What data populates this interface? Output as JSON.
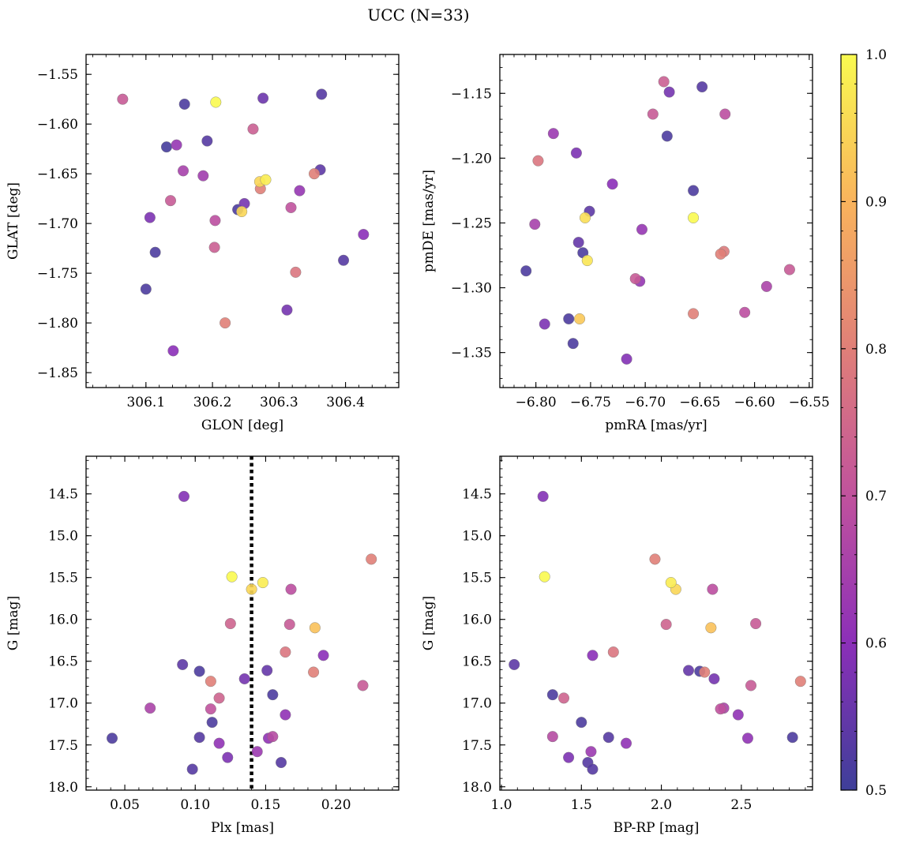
{
  "figure": {
    "title": "UCC (N=33)"
  },
  "colorbar": {
    "colormap": "plasma",
    "vmin": 0.5,
    "vmax": 1.0,
    "ticks": [
      0.5,
      0.6,
      0.7,
      0.8,
      0.9,
      1.0
    ],
    "tick_labels": [
      "0.5",
      "0.6",
      "0.7",
      "0.8",
      "0.9",
      "1.0"
    ]
  },
  "chart_data": [
    {
      "type": "scatter",
      "xlabel": "GLON [deg]",
      "ylabel": "GLAT [deg]",
      "xlim": [
        306.01,
        306.48
      ],
      "ylim": [
        -1.865,
        -1.53
      ],
      "xticks": [
        306.1,
        306.2,
        306.3,
        306.4
      ],
      "xtick_labels": [
        "306.1",
        "306.2",
        "306.3",
        "306.4"
      ],
      "yticks": [
        -1.55,
        -1.6,
        -1.65,
        -1.7,
        -1.75,
        -1.8,
        -1.85
      ],
      "ytick_labels": [
        "−1.55",
        "−1.60",
        "−1.65",
        "−1.70",
        "−1.75",
        "−1.80",
        "−1.85"
      ],
      "points": [
        {
          "x": 306.065,
          "y": -1.575,
          "c": 0.72
        },
        {
          "x": 306.158,
          "y": -1.58,
          "c": 0.52
        },
        {
          "x": 306.205,
          "y": -1.578,
          "c": 1.0
        },
        {
          "x": 306.276,
          "y": -1.574,
          "c": 0.56
        },
        {
          "x": 306.364,
          "y": -1.57,
          "c": 0.53
        },
        {
          "x": 306.131,
          "y": -1.623,
          "c": 0.51
        },
        {
          "x": 306.146,
          "y": -1.621,
          "c": 0.62
        },
        {
          "x": 306.192,
          "y": -1.617,
          "c": 0.53
        },
        {
          "x": 306.261,
          "y": -1.605,
          "c": 0.73
        },
        {
          "x": 306.156,
          "y": -1.647,
          "c": 0.65
        },
        {
          "x": 306.186,
          "y": -1.652,
          "c": 0.64
        },
        {
          "x": 306.271,
          "y": -1.658,
          "c": 0.95
        },
        {
          "x": 306.28,
          "y": -1.656,
          "c": 0.98
        },
        {
          "x": 306.353,
          "y": -1.65,
          "c": 0.8
        },
        {
          "x": 306.362,
          "y": -1.646,
          "c": 0.54
        },
        {
          "x": 306.137,
          "y": -1.677,
          "c": 0.72
        },
        {
          "x": 306.248,
          "y": -1.68,
          "c": 0.57
        },
        {
          "x": 306.272,
          "y": -1.665,
          "c": 0.8
        },
        {
          "x": 306.331,
          "y": -1.667,
          "c": 0.62
        },
        {
          "x": 306.238,
          "y": -1.686,
          "c": 0.52
        },
        {
          "x": 306.244,
          "y": -1.688,
          "c": 0.95
        },
        {
          "x": 306.318,
          "y": -1.684,
          "c": 0.7
        },
        {
          "x": 306.106,
          "y": -1.694,
          "c": 0.58
        },
        {
          "x": 306.204,
          "y": -1.697,
          "c": 0.69
        },
        {
          "x": 306.427,
          "y": -1.711,
          "c": 0.6
        },
        {
          "x": 306.114,
          "y": -1.729,
          "c": 0.52
        },
        {
          "x": 306.203,
          "y": -1.724,
          "c": 0.73
        },
        {
          "x": 306.397,
          "y": -1.737,
          "c": 0.53
        },
        {
          "x": 306.325,
          "y": -1.749,
          "c": 0.78
        },
        {
          "x": 306.1,
          "y": -1.766,
          "c": 0.52
        },
        {
          "x": 306.312,
          "y": -1.787,
          "c": 0.57
        },
        {
          "x": 306.219,
          "y": -1.8,
          "c": 0.8
        },
        {
          "x": 306.141,
          "y": -1.828,
          "c": 0.6
        }
      ]
    },
    {
      "type": "scatter",
      "xlabel": "pmRA [mas/yr]",
      "ylabel": "pmDE [mas/yr]",
      "xlim": [
        -6.833,
        -6.547
      ],
      "ylim": [
        -1.377,
        -1.12
      ],
      "xticks": [
        -6.8,
        -6.75,
        -6.7,
        -6.65,
        -6.6,
        -6.55
      ],
      "xtick_labels": [
        "−6.80",
        "−6.75",
        "−6.70",
        "−6.65",
        "−6.60",
        "−6.55"
      ],
      "yticks": [
        -1.15,
        -1.2,
        -1.25,
        -1.3,
        -1.35
      ],
      "ytick_labels": [
        "−1.15",
        "−1.20",
        "−1.25",
        "−1.30",
        "−1.35"
      ],
      "points": [
        {
          "x": -6.683,
          "y": -1.141,
          "c": 0.73
        },
        {
          "x": -6.648,
          "y": -1.145,
          "c": 0.53
        },
        {
          "x": -6.678,
          "y": -1.149,
          "c": 0.57
        },
        {
          "x": -6.693,
          "y": -1.166,
          "c": 0.72
        },
        {
          "x": -6.627,
          "y": -1.166,
          "c": 0.69
        },
        {
          "x": -6.784,
          "y": -1.181,
          "c": 0.63
        },
        {
          "x": -6.68,
          "y": -1.183,
          "c": 0.52
        },
        {
          "x": -6.763,
          "y": -1.196,
          "c": 0.58
        },
        {
          "x": -6.798,
          "y": -1.202,
          "c": 0.78
        },
        {
          "x": -6.73,
          "y": -1.22,
          "c": 0.6
        },
        {
          "x": -6.656,
          "y": -1.225,
          "c": 0.52
        },
        {
          "x": -6.751,
          "y": -1.241,
          "c": 0.54
        },
        {
          "x": -6.755,
          "y": -1.246,
          "c": 0.96
        },
        {
          "x": -6.656,
          "y": -1.246,
          "c": 1.0
        },
        {
          "x": -6.801,
          "y": -1.251,
          "c": 0.65
        },
        {
          "x": -6.703,
          "y": -1.255,
          "c": 0.62
        },
        {
          "x": -6.761,
          "y": -1.265,
          "c": 0.55
        },
        {
          "x": -6.628,
          "y": -1.272,
          "c": 0.79
        },
        {
          "x": -6.631,
          "y": -1.274,
          "c": 0.8
        },
        {
          "x": -6.757,
          "y": -1.273,
          "c": 0.52
        },
        {
          "x": -6.753,
          "y": -1.279,
          "c": 0.97
        },
        {
          "x": -6.568,
          "y": -1.286,
          "c": 0.72
        },
        {
          "x": -6.809,
          "y": -1.287,
          "c": 0.52
        },
        {
          "x": -6.709,
          "y": -1.293,
          "c": 0.72
        },
        {
          "x": -6.705,
          "y": -1.295,
          "c": 0.62
        },
        {
          "x": -6.589,
          "y": -1.299,
          "c": 0.66
        },
        {
          "x": -6.609,
          "y": -1.319,
          "c": 0.69
        },
        {
          "x": -6.656,
          "y": -1.32,
          "c": 0.8
        },
        {
          "x": -6.77,
          "y": -1.324,
          "c": 0.52
        },
        {
          "x": -6.76,
          "y": -1.324,
          "c": 0.93
        },
        {
          "x": -6.792,
          "y": -1.328,
          "c": 0.58
        },
        {
          "x": -6.766,
          "y": -1.343,
          "c": 0.52
        },
        {
          "x": -6.717,
          "y": -1.355,
          "c": 0.59
        }
      ]
    },
    {
      "type": "scatter",
      "xlabel": "Plx [mas]",
      "ylabel": "G [mag]",
      "xlim": [
        0.0225,
        0.2445
      ],
      "ylim": [
        18.04,
        14.05
      ],
      "inverted_y": true,
      "vline": {
        "x": 0.14,
        "style": "dotted"
      },
      "xticks": [
        0.05,
        0.1,
        0.15,
        0.2
      ],
      "xtick_labels": [
        "0.05",
        "0.10",
        "0.15",
        "0.20"
      ],
      "yticks": [
        14.5,
        15.0,
        15.5,
        16.0,
        16.5,
        17.0,
        17.5,
        18.0
      ],
      "ytick_labels": [
        "14.5",
        "15.0",
        "15.5",
        "16.0",
        "16.5",
        "17.0",
        "17.5",
        "18.0"
      ],
      "points": [
        {
          "x": 0.092,
          "y": 14.53,
          "c": 0.59
        },
        {
          "x": 0.225,
          "y": 15.28,
          "c": 0.8
        },
        {
          "x": 0.126,
          "y": 15.49,
          "c": 1.0
        },
        {
          "x": 0.148,
          "y": 15.56,
          "c": 0.98
        },
        {
          "x": 0.14,
          "y": 15.64,
          "c": 0.95
        },
        {
          "x": 0.168,
          "y": 15.64,
          "c": 0.69
        },
        {
          "x": 0.125,
          "y": 16.05,
          "c": 0.74
        },
        {
          "x": 0.167,
          "y": 16.06,
          "c": 0.72
        },
        {
          "x": 0.185,
          "y": 16.1,
          "c": 0.92
        },
        {
          "x": 0.164,
          "y": 16.39,
          "c": 0.78
        },
        {
          "x": 0.191,
          "y": 16.43,
          "c": 0.6
        },
        {
          "x": 0.091,
          "y": 16.54,
          "c": 0.54
        },
        {
          "x": 0.151,
          "y": 16.61,
          "c": 0.55
        },
        {
          "x": 0.103,
          "y": 16.62,
          "c": 0.52
        },
        {
          "x": 0.184,
          "y": 16.63,
          "c": 0.8
        },
        {
          "x": 0.135,
          "y": 16.71,
          "c": 0.57
        },
        {
          "x": 0.111,
          "y": 16.74,
          "c": 0.8
        },
        {
          "x": 0.219,
          "y": 16.79,
          "c": 0.72
        },
        {
          "x": 0.155,
          "y": 16.9,
          "c": 0.52
        },
        {
          "x": 0.117,
          "y": 16.94,
          "c": 0.74
        },
        {
          "x": 0.068,
          "y": 17.06,
          "c": 0.66
        },
        {
          "x": 0.111,
          "y": 17.07,
          "c": 0.7
        },
        {
          "x": 0.164,
          "y": 17.14,
          "c": 0.61
        },
        {
          "x": 0.112,
          "y": 17.23,
          "c": 0.52
        },
        {
          "x": 0.041,
          "y": 17.42,
          "c": 0.52
        },
        {
          "x": 0.103,
          "y": 17.41,
          "c": 0.53
        },
        {
          "x": 0.155,
          "y": 17.4,
          "c": 0.68
        },
        {
          "x": 0.152,
          "y": 17.42,
          "c": 0.61
        },
        {
          "x": 0.117,
          "y": 17.48,
          "c": 0.61
        },
        {
          "x": 0.144,
          "y": 17.58,
          "c": 0.63
        },
        {
          "x": 0.123,
          "y": 17.65,
          "c": 0.58
        },
        {
          "x": 0.161,
          "y": 17.71,
          "c": 0.53
        },
        {
          "x": 0.098,
          "y": 17.79,
          "c": 0.53
        }
      ]
    },
    {
      "type": "scatter",
      "xlabel": "BP-RP [mag]",
      "ylabel": "G [mag]",
      "xlim": [
        0.99,
        2.945
      ],
      "ylim": [
        18.04,
        14.05
      ],
      "inverted_y": true,
      "xticks": [
        1.0,
        1.5,
        2.0,
        2.5
      ],
      "xtick_labels": [
        "1.0",
        "1.5",
        "2.0",
        "2.5"
      ],
      "yticks": [
        14.5,
        15.0,
        15.5,
        16.0,
        16.5,
        17.0,
        17.5,
        18.0
      ],
      "ytick_labels": [
        "14.5",
        "15.0",
        "15.5",
        "16.0",
        "16.5",
        "17.0",
        "17.5",
        "18.0"
      ],
      "points": [
        {
          "x": 1.26,
          "y": 14.53,
          "c": 0.59
        },
        {
          "x": 1.96,
          "y": 15.28,
          "c": 0.8
        },
        {
          "x": 1.27,
          "y": 15.49,
          "c": 1.0
        },
        {
          "x": 2.06,
          "y": 15.56,
          "c": 0.98
        },
        {
          "x": 2.09,
          "y": 15.64,
          "c": 0.95
        },
        {
          "x": 2.32,
          "y": 15.64,
          "c": 0.69
        },
        {
          "x": 2.03,
          "y": 16.06,
          "c": 0.74
        },
        {
          "x": 2.59,
          "y": 16.05,
          "c": 0.72
        },
        {
          "x": 2.31,
          "y": 16.1,
          "c": 0.92
        },
        {
          "x": 1.7,
          "y": 16.39,
          "c": 0.78
        },
        {
          "x": 1.57,
          "y": 16.43,
          "c": 0.6
        },
        {
          "x": 1.08,
          "y": 16.54,
          "c": 0.54
        },
        {
          "x": 2.17,
          "y": 16.61,
          "c": 0.55
        },
        {
          "x": 2.24,
          "y": 16.62,
          "c": 0.52
        },
        {
          "x": 2.27,
          "y": 16.63,
          "c": 0.8
        },
        {
          "x": 2.33,
          "y": 16.71,
          "c": 0.57
        },
        {
          "x": 2.87,
          "y": 16.74,
          "c": 0.8
        },
        {
          "x": 2.56,
          "y": 16.79,
          "c": 0.72
        },
        {
          "x": 1.32,
          "y": 16.9,
          "c": 0.52
        },
        {
          "x": 1.39,
          "y": 16.94,
          "c": 0.74
        },
        {
          "x": 2.37,
          "y": 17.07,
          "c": 0.7
        },
        {
          "x": 2.39,
          "y": 17.06,
          "c": 0.66
        },
        {
          "x": 2.48,
          "y": 17.14,
          "c": 0.61
        },
        {
          "x": 1.5,
          "y": 17.23,
          "c": 0.52
        },
        {
          "x": 1.32,
          "y": 17.4,
          "c": 0.68
        },
        {
          "x": 1.67,
          "y": 17.41,
          "c": 0.53
        },
        {
          "x": 2.54,
          "y": 17.42,
          "c": 0.61
        },
        {
          "x": 2.82,
          "y": 17.41,
          "c": 0.52
        },
        {
          "x": 1.78,
          "y": 17.48,
          "c": 0.61
        },
        {
          "x": 1.56,
          "y": 17.58,
          "c": 0.63
        },
        {
          "x": 1.42,
          "y": 17.65,
          "c": 0.58
        },
        {
          "x": 1.54,
          "y": 17.71,
          "c": 0.53
        },
        {
          "x": 1.57,
          "y": 17.79,
          "c": 0.53
        }
      ]
    }
  ]
}
